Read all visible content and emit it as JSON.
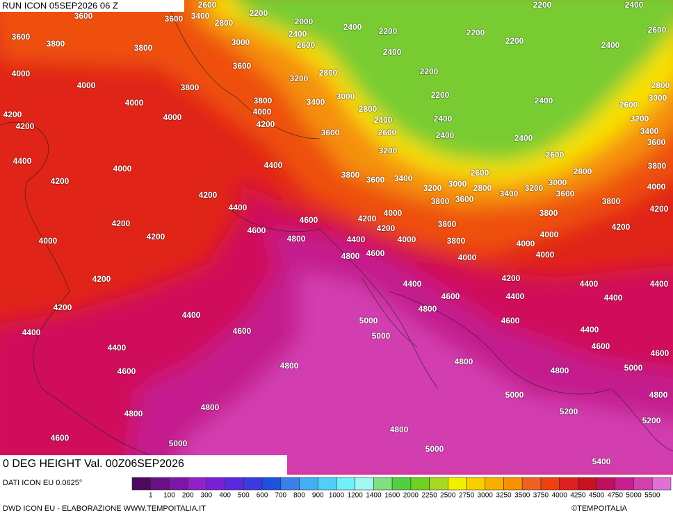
{
  "header": {
    "title": "RUN ICON 05SEP2026 06 Z"
  },
  "map": {
    "caption": "0 DEG HEIGHT Val. 00Z06SEP2026",
    "contour_labels": [
      3600,
      3600,
      3400,
      2600,
      2800,
      2200,
      2000,
      2400,
      2600,
      3000,
      2400,
      2200,
      2400,
      2200,
      2200,
      2200,
      2400,
      2600,
      2400,
      3600,
      3800,
      3800,
      3600,
      3200,
      2800,
      2200,
      4000,
      4000,
      3800,
      3800,
      4000,
      4200,
      3400,
      3000,
      2800,
      2400,
      2600,
      2200,
      2400,
      2400,
      2400,
      2800,
      3000,
      2600,
      3200,
      3400,
      3600,
      4000,
      4000,
      4200,
      4200,
      3600,
      3200,
      2400,
      2600,
      4400,
      4000,
      4400,
      3800,
      3600,
      3400,
      2600,
      2800,
      3800,
      4200,
      4200,
      3200,
      3000,
      2800,
      3400,
      3200,
      3000,
      3600,
      4000,
      3800,
      3600,
      4400,
      3800,
      4200,
      4000,
      3800,
      4200,
      4600,
      4200,
      4200,
      3800,
      4200,
      4600,
      4200,
      4000,
      4800,
      4400,
      4000,
      3800,
      4000,
      4000,
      4800,
      4600,
      4000,
      4000,
      4200,
      4400,
      4200,
      4400,
      4400,
      4600,
      4400,
      4400,
      4200,
      4800,
      4400,
      5000,
      4600,
      4400,
      4600,
      5000,
      4400,
      4400,
      4600,
      4600,
      4600,
      4800,
      4800,
      5000,
      4800,
      4800,
      5000,
      4800,
      4800,
      5200,
      5200,
      4800,
      4600,
      5000,
      5000,
      5400
    ]
  },
  "footer": {
    "source": "DATI ICON EU 0.0625°",
    "credit": "DWD ICON EU - ELABORAZIONE WWW.TEMPOITALIA.IT",
    "copyright": "©TEMPOITALIA"
  },
  "color_scale": {
    "labels": [
      1,
      100,
      200,
      300,
      400,
      500,
      600,
      700,
      800,
      900,
      1000,
      1200,
      1400,
      1600,
      2000,
      2250,
      2500,
      2750,
      3000,
      3250,
      3500,
      3750,
      4000,
      4250,
      4500,
      4750,
      5000,
      5500
    ],
    "colors": [
      "#4b0a5e",
      "#6a0f85",
      "#7d16a8",
      "#9020c8",
      "#7a20d8",
      "#5a28e0",
      "#3a3ae0",
      "#2050e0",
      "#3a80e8",
      "#40b0f0",
      "#50d0f8",
      "#70f0f8",
      "#a0f8f0",
      "#80e080",
      "#50d040",
      "#70d020",
      "#a8d820",
      "#f0f000",
      "#f8d000",
      "#f8b000",
      "#f89000",
      "#f06020",
      "#f04010",
      "#e02020",
      "#c81020",
      "#c01060",
      "#c82090",
      "#d040b0",
      "#e070d8"
    ]
  }
}
